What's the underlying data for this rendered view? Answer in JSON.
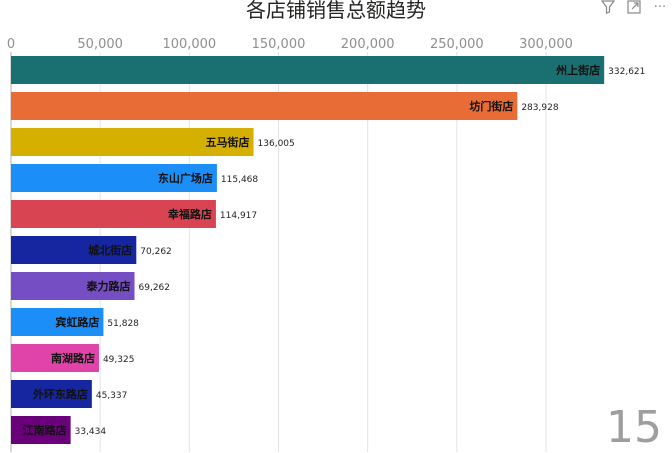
{
  "toolbar": {
    "icons": [
      "filter-icon",
      "focus-mode-icon",
      "more-options-icon"
    ],
    "more_glyph": "···"
  },
  "frame_counter": "15",
  "chart_data": {
    "type": "bar",
    "orientation": "horizontal",
    "title": "各店铺销售总额趋势",
    "xlim": [
      0,
      350000
    ],
    "ticks": [
      0,
      50000,
      100000,
      150000,
      200000,
      250000,
      300000
    ],
    "tick_labels": [
      "0",
      "50,000",
      "100,000",
      "150,000",
      "200,000",
      "250,000",
      "300,000"
    ],
    "grid": true,
    "categories": [
      "州上街店",
      "坊门街店",
      "五马街店",
      "东山广场店",
      "幸福路店",
      "城北街店",
      "泰力路店",
      "宾虹路店",
      "南湖路店",
      "外环东路店",
      "江南路店"
    ],
    "values": [
      332621,
      283928,
      136005,
      115468,
      114917,
      70262,
      69262,
      51828,
      49325,
      45337,
      33434
    ],
    "value_labels": [
      "332,621",
      "283,928",
      "136,005",
      "115,468",
      "114,917",
      "70,262",
      "69,262",
      "51,828",
      "49,325",
      "45,337",
      "33,434"
    ],
    "colors": [
      "#1a7070",
      "#e86c36",
      "#d6b000",
      "#1c8ef7",
      "#d94452",
      "#1626a0",
      "#744ec2",
      "#1c8ef7",
      "#e044a8",
      "#1626a0",
      "#6b007b"
    ]
  }
}
